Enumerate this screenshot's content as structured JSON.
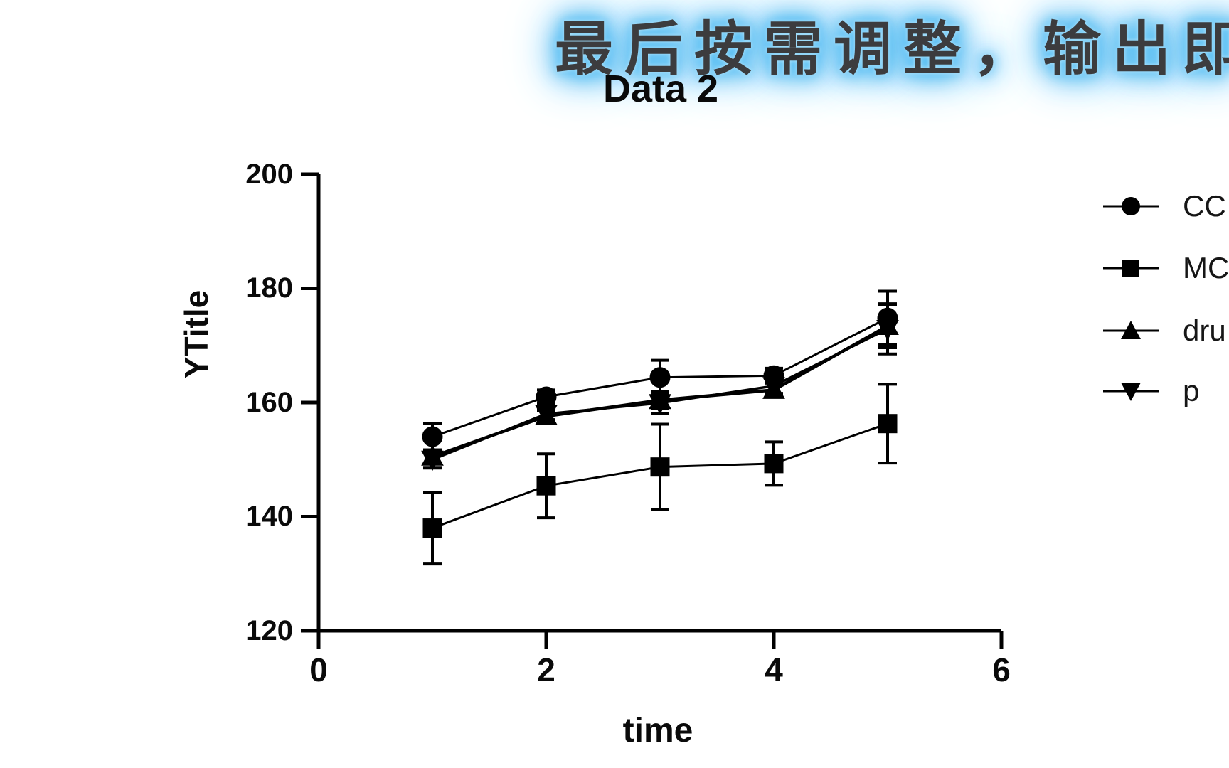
{
  "banner": {
    "text": "最后按需调整，输出即",
    "text_color": "#3c3c3e",
    "glow_color": "#45b5f1"
  },
  "chart_data": {
    "type": "line",
    "title": "Data 2",
    "xlabel": "time",
    "ylabel": "YTitle",
    "xlim": [
      0,
      6
    ],
    "ylim": [
      120,
      200
    ],
    "x_ticks": [
      0,
      2,
      4,
      6
    ],
    "y_ticks": [
      200,
      180,
      160,
      140,
      120
    ],
    "grid": false,
    "legend_position": "right-outside-clipped",
    "marker_color": "#000000",
    "error_bars": "symmetric-sd",
    "x": [
      1,
      2,
      3,
      4,
      5
    ],
    "series": [
      {
        "name": "CC",
        "marker": "circle",
        "values": [
          154.0,
          161.0,
          164.4,
          164.7,
          174.8
        ],
        "errors": [
          2.3,
          1.2,
          3.0,
          1.3,
          4.7
        ],
        "line_width": 3
      },
      {
        "name": "MC",
        "marker": "square",
        "values": [
          138.0,
          145.4,
          148.7,
          149.3,
          156.3
        ],
        "errors": [
          6.3,
          5.6,
          7.5,
          3.8,
          6.9
        ],
        "line_width": 3
      },
      {
        "name": "dru",
        "marker": "triangle-up",
        "values": [
          150.5,
          157.6,
          160.4,
          162.2,
          173.4
        ],
        "errors": [
          1.2,
          1.0,
          1.5,
          1.2,
          3.8
        ],
        "line_width": 4.5
      },
      {
        "name": "p",
        "marker": "triangle-down",
        "values": [
          150.0,
          158.0,
          159.9,
          162.9,
          172.9
        ],
        "errors": [
          1.5,
          1.0,
          1.8,
          1.3,
          4.4
        ],
        "line_width": 3.5
      }
    ]
  }
}
